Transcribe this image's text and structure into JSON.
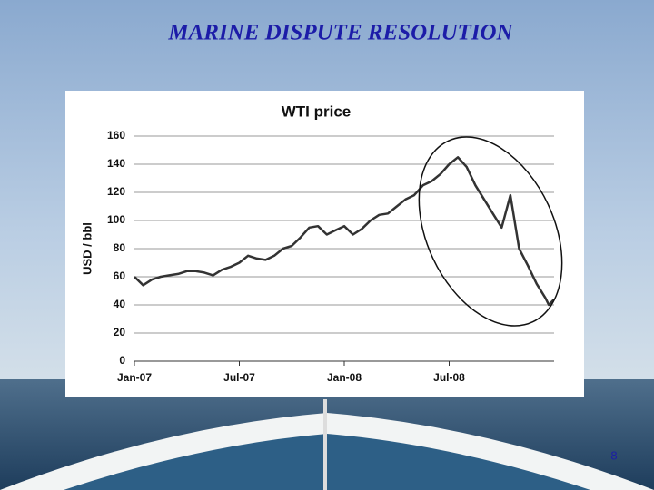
{
  "slide": {
    "title": "MARINE DISPUTE RESOLUTION",
    "page_number": "8"
  },
  "chart_data": {
    "type": "line",
    "title": "WTI price",
    "y_label": "USD / bbl",
    "color": "#333333",
    "grid": true,
    "x": [
      0,
      0.5,
      1,
      1.5,
      2,
      2.5,
      3,
      3.5,
      4,
      4.5,
      5,
      5.5,
      6,
      6.5,
      7,
      7.5,
      8,
      8.5,
      9,
      9.5,
      10,
      10.5,
      11,
      11.5,
      12,
      12.5,
      13,
      13.5,
      14,
      14.5,
      15,
      15.5,
      16,
      16.5,
      17,
      17.5,
      18,
      18.5,
      19,
      19.5,
      20,
      20.5,
      21,
      21.5,
      22,
      22.5,
      23,
      23.5,
      23.7,
      24
    ],
    "values": [
      60,
      54,
      58,
      60,
      61,
      62,
      64,
      64,
      63,
      61,
      65,
      67,
      70,
      75,
      73,
      72,
      75,
      80,
      82,
      88,
      95,
      96,
      90,
      93,
      96,
      90,
      94,
      100,
      104,
      105,
      110,
      115,
      118,
      125,
      128,
      133,
      140,
      145,
      138,
      125,
      115,
      105,
      95,
      118,
      80,
      68,
      55,
      45,
      40,
      44
    ],
    "xlim": [
      0,
      24
    ],
    "xticks": [
      {
        "value": 0,
        "label": "Jan-07"
      },
      {
        "value": 6,
        "label": "Jul-07"
      },
      {
        "value": 12,
        "label": "Jan-08"
      },
      {
        "value": 18,
        "label": "Jul-08"
      }
    ],
    "ylim": [
      0,
      160
    ],
    "yticks": [
      0,
      20,
      40,
      60,
      80,
      100,
      120,
      140,
      160
    ]
  }
}
